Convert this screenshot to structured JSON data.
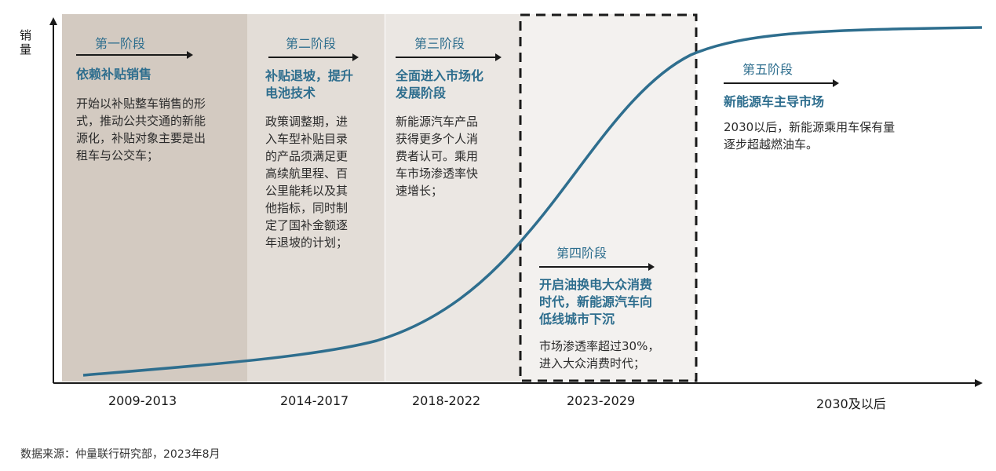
{
  "y_axis_label_chars": [
    "销",
    "量"
  ],
  "stages": [
    {
      "stage": "第一阶段",
      "headline": [
        "依赖补贴销售"
      ],
      "body": [
        "开始以补贴整车销售的形",
        "式，推动公共交通的新能",
        "源化，补贴对象主要是出",
        "租车与公交车；"
      ],
      "period": "2009-2013"
    },
    {
      "stage": "第二阶段",
      "headline": [
        "补贴退坡，提升",
        "电池技术"
      ],
      "body": [
        "政策调整期，进",
        "入车型补贴目录",
        "的产品须满足更",
        "高续航里程、百",
        "公里能耗以及其",
        "他指标，同时制",
        "定了国补金额逐",
        "年退坡的计划；"
      ],
      "period": "2014-2017"
    },
    {
      "stage": "第三阶段",
      "headline": [
        "全面进入市场化",
        "发展阶段"
      ],
      "body": [
        "新能源汽车产品",
        "获得更多个人消",
        "费者认可。乘用",
        "车市场渗透率快",
        "速增长；"
      ],
      "period": "2018-2022"
    },
    {
      "stage": "第四阶段",
      "headline": [
        "开启油换电大众消费",
        "时代，新能源汽车向",
        "低线城市下沉"
      ],
      "body": [
        "市场渗透率超过30%，",
        "进入大众消费时代；"
      ],
      "period": "2023-2029"
    },
    {
      "stage": "第五阶段",
      "headline": [
        "新能源车主导市场"
      ],
      "body": [
        "2030以后，新能源乘用车保有量",
        "逐步超越燃油车。"
      ],
      "period": "2030及以后"
    }
  ],
  "source": "数据来源：仲量联行研究部，2023年8月",
  "colors": {
    "band1": "#d3cac1",
    "band2": "#e3ddd7",
    "band3": "#ebe7e3",
    "band4": "#f3f1ef",
    "curve": "#2e6e8e",
    "accent_text": "#2e6e8e"
  }
}
